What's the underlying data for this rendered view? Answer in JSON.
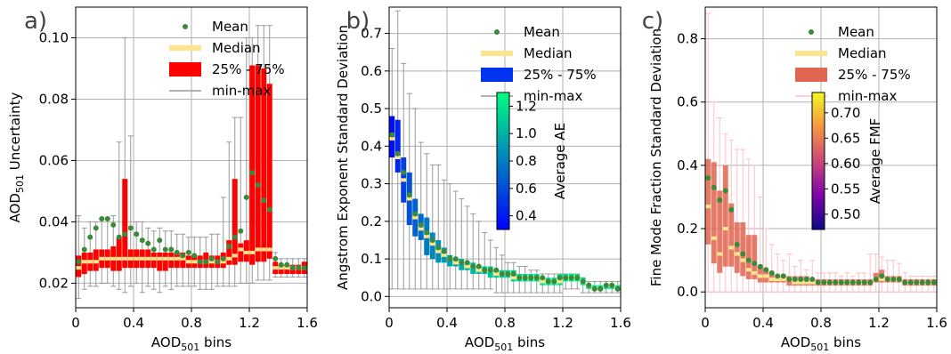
{
  "chart_data": [
    {
      "type": "box",
      "letter": "a)",
      "xlabel": "AOD",
      "xlabel_sub": "501",
      "xlabel_suffix": " bins",
      "ylabel": "AOD",
      "ylabel_sub": "501",
      "ylabel_suffix": " Uncertainty",
      "xlim": [
        0,
        1.6
      ],
      "ylim": [
        0.012,
        0.11
      ],
      "xticks": [
        0,
        0.4,
        0.8,
        1.2,
        1.6
      ],
      "xtick_labels": [
        "0",
        "0.4",
        "0.8",
        "1.2",
        "1.6"
      ],
      "yticks": [
        0.02,
        0.04,
        0.06,
        0.08,
        0.1
      ],
      "ytick_labels": [
        "0.02",
        "0.04",
        "0.06",
        "0.08",
        "0.10"
      ],
      "grid": true,
      "legend_position": "top-right",
      "legend": [
        "Mean",
        "Median",
        "25% - 75%",
        "min-max"
      ],
      "colors": {
        "mean": "#3a8a3a",
        "median": "#ffe48a",
        "box": "#ff0000",
        "whisker": "#999999"
      },
      "bin_width": 0.04,
      "x": [
        0.02,
        0.06,
        0.1,
        0.14,
        0.18,
        0.22,
        0.26,
        0.3,
        0.34,
        0.38,
        0.42,
        0.46,
        0.5,
        0.54,
        0.58,
        0.62,
        0.66,
        0.7,
        0.74,
        0.78,
        0.82,
        0.86,
        0.9,
        0.94,
        0.98,
        1.02,
        1.06,
        1.1,
        1.14,
        1.18,
        1.22,
        1.26,
        1.3,
        1.34,
        1.38,
        1.42,
        1.46,
        1.5,
        1.54,
        1.58
      ],
      "mean": [
        0.027,
        0.031,
        0.035,
        0.038,
        0.041,
        0.041,
        0.039,
        0.035,
        0.036,
        0.038,
        0.036,
        0.034,
        0.033,
        0.031,
        0.034,
        0.031,
        0.031,
        0.03,
        0.029,
        0.03,
        0.029,
        0.027,
        0.027,
        0.028,
        0.027,
        0.028,
        0.032,
        0.035,
        0.037,
        0.048,
        0.056,
        0.052,
        0.047,
        0.044,
        0.028,
        0.026,
        0.026,
        0.025,
        0.025,
        0.025
      ],
      "median": [
        0.025,
        0.027,
        0.027,
        0.027,
        0.028,
        0.028,
        0.028,
        0.028,
        0.028,
        0.028,
        0.028,
        0.028,
        0.028,
        0.028,
        0.028,
        0.028,
        0.028,
        0.028,
        0.028,
        0.027,
        0.027,
        0.027,
        0.027,
        0.027,
        0.027,
        0.027,
        0.028,
        0.029,
        0.031,
        0.03,
        0.03,
        0.031,
        0.031,
        0.031,
        0.025,
        0.025,
        0.025,
        0.025,
        0.025,
        0.025
      ],
      "q1": [
        0.022,
        0.023,
        0.024,
        0.024,
        0.025,
        0.025,
        0.024,
        0.024,
        0.025,
        0.025,
        0.025,
        0.025,
        0.025,
        0.025,
        0.024,
        0.024,
        0.025,
        0.025,
        0.025,
        0.025,
        0.025,
        0.025,
        0.025,
        0.025,
        0.025,
        0.025,
        0.026,
        0.026,
        0.027,
        0.027,
        0.026,
        0.027,
        0.027,
        0.028,
        0.023,
        0.023,
        0.023,
        0.023,
        0.023,
        0.023
      ],
      "q3": [
        0.029,
        0.03,
        0.03,
        0.031,
        0.031,
        0.031,
        0.032,
        0.035,
        0.054,
        0.031,
        0.031,
        0.031,
        0.031,
        0.03,
        0.03,
        0.03,
        0.03,
        0.03,
        0.03,
        0.029,
        0.029,
        0.029,
        0.03,
        0.029,
        0.029,
        0.03,
        0.034,
        0.054,
        0.033,
        0.034,
        0.091,
        0.091,
        0.09,
        0.085,
        0.027,
        0.026,
        0.026,
        0.026,
        0.026,
        0.027
      ],
      "min": [
        0.015,
        0.018,
        0.019,
        0.019,
        0.02,
        0.02,
        0.019,
        0.018,
        0.017,
        0.019,
        0.02,
        0.017,
        0.019,
        0.018,
        0.017,
        0.019,
        0.018,
        0.019,
        0.019,
        0.019,
        0.019,
        0.018,
        0.018,
        0.018,
        0.019,
        0.019,
        0.019,
        0.019,
        0.02,
        0.02,
        0.02,
        0.021,
        0.021,
        0.021,
        0.022,
        0.022,
        0.022,
        0.022,
        0.022,
        0.022
      ],
      "max": [
        0.042,
        0.038,
        0.04,
        0.04,
        0.041,
        0.041,
        0.042,
        0.066,
        0.1,
        0.068,
        0.04,
        0.04,
        0.038,
        0.037,
        0.038,
        0.037,
        0.037,
        0.036,
        0.036,
        0.035,
        0.035,
        0.035,
        0.035,
        0.036,
        0.036,
        0.048,
        0.066,
        0.074,
        0.074,
        0.1,
        0.1,
        0.104,
        0.104,
        0.104,
        0.03,
        0.028,
        0.028,
        0.028,
        0.028,
        0.028
      ]
    },
    {
      "type": "box",
      "letter": "b)",
      "xlabel": "AOD",
      "xlabel_sub": "501",
      "xlabel_suffix": " bins",
      "ylabel": "Angstrom Exponent Standard Deviation",
      "xlim": [
        0,
        1.6
      ],
      "ylim": [
        -0.03,
        0.77
      ],
      "xticks": [
        0,
        0.4,
        0.8,
        1.2,
        1.6
      ],
      "xtick_labels": [
        "0",
        "0.4",
        "0.8",
        "1.2",
        "1.6"
      ],
      "yticks": [
        0.0,
        0.1,
        0.2,
        0.3,
        0.4,
        0.5,
        0.6,
        0.7
      ],
      "ytick_labels": [
        "0.0",
        "0.1",
        "0.2",
        "0.3",
        "0.4",
        "0.5",
        "0.6",
        "0.7"
      ],
      "grid": true,
      "legend_position": "top-right",
      "legend": [
        "Mean",
        "Median",
        "25% - 75%",
        "min-max"
      ],
      "colors": {
        "mean": "#3a8a3a",
        "median": "#ffe48a",
        "box": "#0033ee",
        "whisker": "#999999"
      },
      "colorbar": {
        "label": "Average AE",
        "ticks": [
          0.4,
          0.6,
          0.8,
          1.0,
          1.2
        ],
        "tick_labels": [
          "0.4",
          "0.6",
          "0.8",
          "1.0",
          "1.2"
        ],
        "range": [
          0.3,
          1.3
        ],
        "cmap": "winter"
      },
      "bin_width": 0.04,
      "x": [
        0.02,
        0.06,
        0.1,
        0.14,
        0.18,
        0.22,
        0.26,
        0.3,
        0.34,
        0.38,
        0.42,
        0.46,
        0.5,
        0.54,
        0.58,
        0.62,
        0.66,
        0.7,
        0.74,
        0.78,
        0.82,
        0.86,
        0.9,
        0.94,
        0.98,
        1.02,
        1.06,
        1.1,
        1.14,
        1.18,
        1.22,
        1.26,
        1.3,
        1.34,
        1.38,
        1.42,
        1.46,
        1.5,
        1.54,
        1.58
      ],
      "mean": [
        0.43,
        0.38,
        0.33,
        0.27,
        0.22,
        0.19,
        0.17,
        0.15,
        0.13,
        0.12,
        0.1,
        0.1,
        0.09,
        0.09,
        0.08,
        0.08,
        0.07,
        0.07,
        0.07,
        0.06,
        0.06,
        0.06,
        0.05,
        0.05,
        0.05,
        0.05,
        0.05,
        0.04,
        0.04,
        0.05,
        0.05,
        0.05,
        0.05,
        0.04,
        0.03,
        0.02,
        0.02,
        0.03,
        0.03,
        0.02
      ],
      "median": [
        0.42,
        0.37,
        0.31,
        0.26,
        0.21,
        0.18,
        0.16,
        0.14,
        0.12,
        0.11,
        0.1,
        0.09,
        0.09,
        0.08,
        0.08,
        0.07,
        0.07,
        0.07,
        0.06,
        0.06,
        0.06,
        0.05,
        0.05,
        0.05,
        0.05,
        0.05,
        0.04,
        0.04,
        0.04,
        0.04,
        0.05,
        0.05,
        0.05,
        0.04,
        0.03,
        0.02,
        0.02,
        0.03,
        0.03,
        0.02
      ],
      "q1": [
        0.37,
        0.33,
        0.25,
        0.19,
        0.16,
        0.15,
        0.11,
        0.1,
        0.09,
        0.09,
        0.08,
        0.08,
        0.07,
        0.07,
        0.06,
        0.06,
        0.06,
        0.05,
        0.05,
        0.05,
        0.05,
        0.04,
        0.04,
        0.04,
        0.04,
        0.04,
        0.03,
        0.03,
        0.03,
        0.03,
        0.04,
        0.04,
        0.04,
        0.03,
        0.02,
        0.02,
        0.02,
        0.02,
        0.02,
        0.02
      ],
      "q3": [
        0.48,
        0.47,
        0.37,
        0.33,
        0.26,
        0.22,
        0.21,
        0.17,
        0.15,
        0.13,
        0.11,
        0.1,
        0.1,
        0.09,
        0.09,
        0.08,
        0.08,
        0.08,
        0.07,
        0.07,
        0.07,
        0.07,
        0.06,
        0.06,
        0.06,
        0.06,
        0.05,
        0.05,
        0.05,
        0.06,
        0.06,
        0.06,
        0.06,
        0.05,
        0.03,
        0.03,
        0.03,
        0.03,
        0.03,
        0.03
      ],
      "avg": [
        0.35,
        0.45,
        0.55,
        0.62,
        0.68,
        0.72,
        0.78,
        0.82,
        0.86,
        0.9,
        0.92,
        0.95,
        0.98,
        1.0,
        1.02,
        1.04,
        1.06,
        1.08,
        1.1,
        1.12,
        1.13,
        1.14,
        1.15,
        1.16,
        1.17,
        1.18,
        1.18,
        1.19,
        1.2,
        1.2,
        1.21,
        1.22,
        1.22,
        1.22,
        1.2,
        1.2,
        1.2,
        1.2,
        1.2,
        1.2
      ],
      "min": [
        0.02,
        0.02,
        0.02,
        0.02,
        0.02,
        0.02,
        0.02,
        0.02,
        0.02,
        0.02,
        0.02,
        0.02,
        0.02,
        0.02,
        0.02,
        0.02,
        0.02,
        0.02,
        0.01,
        0.01,
        0.01,
        0.01,
        0.01,
        0.01,
        0.01,
        0.01,
        0.01,
        0.01,
        0.01,
        0.01,
        0.02,
        0.02,
        0.02,
        0.01,
        0.01,
        0.01,
        0.01,
        0.01,
        0.01,
        0.01
      ],
      "max": [
        0.66,
        0.76,
        0.62,
        0.54,
        0.5,
        0.41,
        0.38,
        0.35,
        0.35,
        0.31,
        0.3,
        0.28,
        0.26,
        0.24,
        0.22,
        0.2,
        0.17,
        0.15,
        0.13,
        0.11,
        0.09,
        0.09,
        0.08,
        0.08,
        0.07,
        0.07,
        0.06,
        0.06,
        0.06,
        0.06,
        0.06,
        0.06,
        0.06,
        0.05,
        0.04,
        0.04,
        0.04,
        0.04,
        0.04,
        0.04
      ]
    },
    {
      "type": "box",
      "letter": "c)",
      "xlabel": "AOD",
      "xlabel_sub": "501",
      "xlabel_suffix": " bins",
      "ylabel": "Fine Mode Fraction Standard Deviation",
      "xlim": [
        0,
        1.6
      ],
      "ylim": [
        -0.05,
        0.9
      ],
      "xticks": [
        0,
        0.4,
        0.8,
        1.2,
        1.6
      ],
      "xtick_labels": [
        "0",
        "0.4",
        "0.8",
        "1.2",
        "1.6"
      ],
      "yticks": [
        0.0,
        0.2,
        0.4,
        0.6,
        0.8
      ],
      "ytick_labels": [
        "0.0",
        "0.2",
        "0.4",
        "0.6",
        "0.8"
      ],
      "grid": true,
      "legend_position": "top-right",
      "legend": [
        "Mean",
        "Median",
        "25% - 75%",
        "min-max"
      ],
      "colors": {
        "mean": "#3a8a3a",
        "median": "#ffe48a",
        "box": "#e06650",
        "whisker": "#ffc0cb"
      },
      "colorbar": {
        "label": "Average FMF",
        "ticks": [
          0.5,
          0.55,
          0.6,
          0.65,
          0.7
        ],
        "tick_labels": [
          "0.50",
          "0.55",
          "0.60",
          "0.65",
          "0.70"
        ],
        "range": [
          0.47,
          0.74
        ],
        "cmap": "plasma"
      },
      "bin_width": 0.04,
      "x": [
        0.02,
        0.06,
        0.1,
        0.14,
        0.18,
        0.22,
        0.26,
        0.3,
        0.34,
        0.38,
        0.42,
        0.46,
        0.5,
        0.54,
        0.58,
        0.62,
        0.66,
        0.7,
        0.74,
        0.78,
        0.82,
        0.86,
        0.9,
        0.94,
        0.98,
        1.02,
        1.06,
        1.1,
        1.14,
        1.18,
        1.22,
        1.26,
        1.3,
        1.34,
        1.38,
        1.42,
        1.46,
        1.5,
        1.54,
        1.58
      ],
      "mean": [
        0.36,
        0.33,
        0.29,
        0.32,
        0.26,
        0.15,
        0.12,
        0.1,
        0.09,
        0.08,
        0.07,
        0.06,
        0.05,
        0.05,
        0.04,
        0.04,
        0.04,
        0.04,
        0.04,
        0.03,
        0.03,
        0.03,
        0.03,
        0.03,
        0.03,
        0.03,
        0.03,
        0.03,
        0.03,
        0.04,
        0.05,
        0.04,
        0.04,
        0.04,
        0.03,
        0.03,
        0.03,
        0.03,
        0.03,
        0.03
      ],
      "median": [
        0.27,
        0.17,
        0.12,
        0.2,
        0.14,
        0.12,
        0.1,
        0.07,
        0.06,
        0.05,
        0.05,
        0.04,
        0.04,
        0.04,
        0.04,
        0.03,
        0.03,
        0.03,
        0.03,
        0.03,
        0.03,
        0.03,
        0.03,
        0.03,
        0.03,
        0.03,
        0.03,
        0.03,
        0.03,
        0.04,
        0.04,
        0.04,
        0.04,
        0.04,
        0.03,
        0.03,
        0.03,
        0.03,
        0.03,
        0.03
      ],
      "q1": [
        0.15,
        0.09,
        0.06,
        0.08,
        0.08,
        0.06,
        0.05,
        0.04,
        0.04,
        0.03,
        0.03,
        0.03,
        0.03,
        0.03,
        0.02,
        0.02,
        0.02,
        0.02,
        0.02,
        0.02,
        0.02,
        0.02,
        0.02,
        0.02,
        0.02,
        0.02,
        0.02,
        0.02,
        0.02,
        0.03,
        0.03,
        0.03,
        0.03,
        0.03,
        0.02,
        0.02,
        0.02,
        0.02,
        0.02,
        0.02
      ],
      "q3": [
        0.42,
        0.41,
        0.32,
        0.4,
        0.28,
        0.22,
        0.22,
        0.18,
        0.18,
        0.08,
        0.07,
        0.06,
        0.05,
        0.05,
        0.05,
        0.05,
        0.05,
        0.05,
        0.04,
        0.04,
        0.04,
        0.04,
        0.04,
        0.04,
        0.04,
        0.04,
        0.04,
        0.04,
        0.04,
        0.06,
        0.07,
        0.05,
        0.05,
        0.05,
        0.04,
        0.04,
        0.04,
        0.04,
        0.04,
        0.04
      ],
      "avg": [
        0.52,
        0.55,
        0.58,
        0.6,
        0.62,
        0.64,
        0.66,
        0.67,
        0.68,
        0.69,
        0.7,
        0.7,
        0.71,
        0.71,
        0.71,
        0.72,
        0.72,
        0.72,
        0.72,
        0.72,
        0.72,
        0.72,
        0.73,
        0.73,
        0.73,
        0.73,
        0.73,
        0.73,
        0.73,
        0.73,
        0.73,
        0.73,
        0.73,
        0.73,
        0.73,
        0.73,
        0.73,
        0.73,
        0.73,
        0.73
      ],
      "min": [
        0.0,
        0.0,
        0.0,
        0.0,
        0.0,
        0.0,
        0.0,
        0.0,
        0.0,
        0.0,
        0.0,
        0.0,
        0.0,
        0.0,
        0.0,
        0.0,
        0.0,
        0.0,
        0.0,
        0.0,
        0.0,
        0.0,
        0.0,
        0.0,
        0.0,
        0.0,
        0.0,
        0.0,
        0.0,
        0.0,
        0.0,
        0.0,
        0.0,
        0.0,
        0.0,
        0.0,
        0.0,
        0.0,
        0.0,
        0.0
      ],
      "max": [
        0.88,
        0.6,
        0.55,
        0.5,
        0.48,
        0.45,
        0.45,
        0.42,
        0.4,
        0.3,
        0.2,
        0.15,
        0.12,
        0.1,
        0.12,
        0.08,
        0.1,
        0.07,
        0.1,
        0.06,
        0.06,
        0.06,
        0.06,
        0.05,
        0.06,
        0.05,
        0.06,
        0.06,
        0.12,
        0.12,
        0.11,
        0.1,
        0.1,
        0.09,
        0.06,
        0.05,
        0.05,
        0.05,
        0.05,
        0.05
      ]
    }
  ]
}
